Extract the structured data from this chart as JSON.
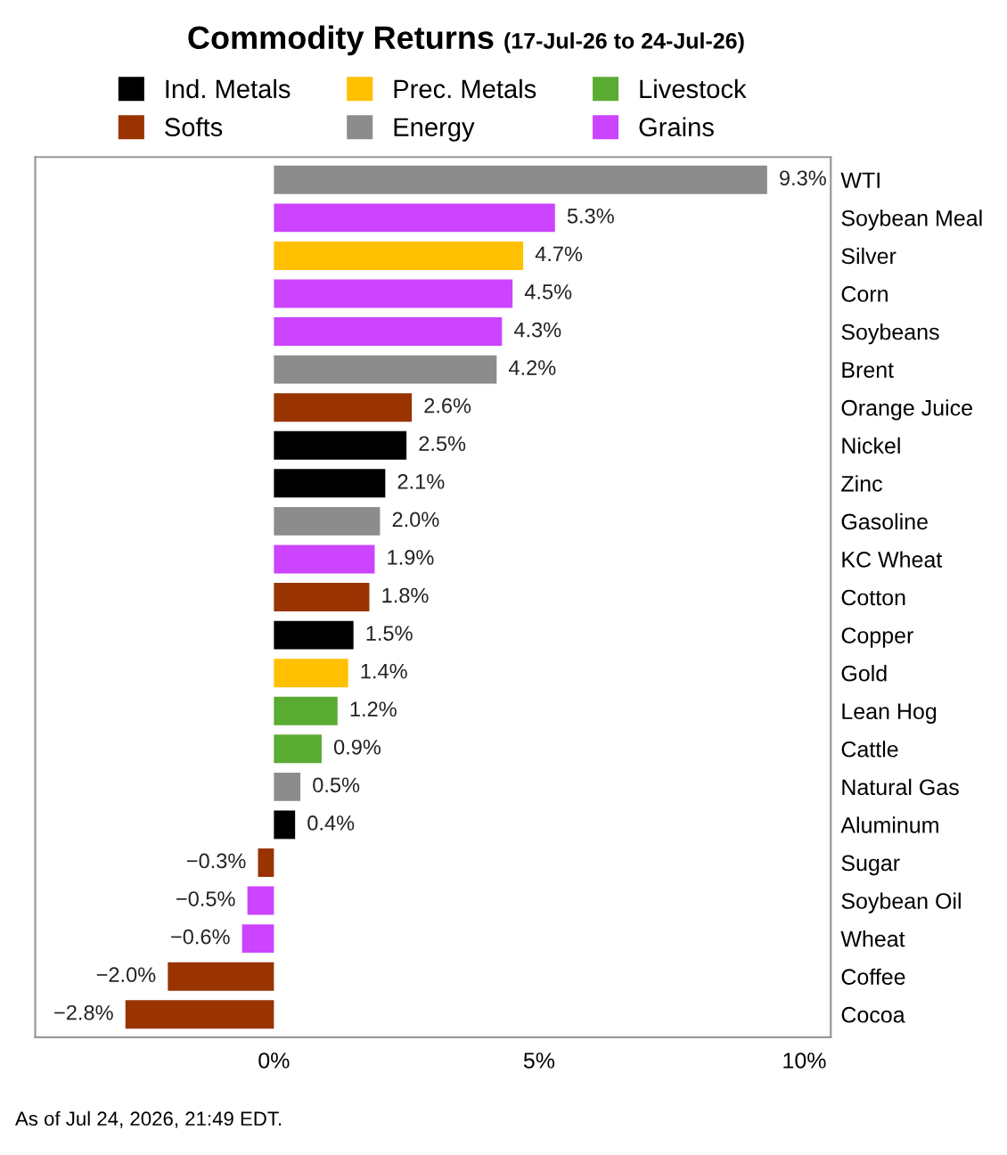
{
  "chart_data": {
    "type": "bar",
    "orientation": "horizontal",
    "title": "Commodity Returns",
    "subtitle": "(17-Jul-26 to 24-Jul-26)",
    "categories": [
      "WTI",
      "Soybean Meal",
      "Silver",
      "Corn",
      "Soybeans",
      "Brent",
      "Orange Juice",
      "Nickel",
      "Zinc",
      "Gasoline",
      "KC Wheat",
      "Cotton",
      "Copper",
      "Gold",
      "Lean Hog",
      "Cattle",
      "Natural Gas",
      "Aluminum",
      "Sugar",
      "Soybean Oil",
      "Wheat",
      "Coffee",
      "Cocoa"
    ],
    "series": [
      {
        "name": "Ind. Metals",
        "color": "#000000",
        "values": [
          null,
          null,
          null,
          null,
          null,
          null,
          null,
          2.5,
          2.1,
          null,
          null,
          null,
          1.5,
          null,
          null,
          null,
          null,
          0.4,
          null,
          null,
          null,
          null,
          null
        ],
        "value_labels": [
          null,
          null,
          null,
          null,
          null,
          null,
          null,
          "2.5%",
          "2.1%",
          null,
          null,
          null,
          "1.5%",
          null,
          null,
          null,
          null,
          "0.4%",
          null,
          null,
          null,
          null,
          null
        ]
      },
      {
        "name": "Prec. Metals",
        "color": "#ffc000",
        "values": [
          null,
          null,
          4.7,
          null,
          null,
          null,
          null,
          null,
          null,
          null,
          null,
          null,
          null,
          1.4,
          null,
          null,
          null,
          null,
          null,
          null,
          null,
          null,
          null
        ],
        "value_labels": [
          null,
          null,
          "4.7%",
          null,
          null,
          null,
          null,
          null,
          null,
          null,
          null,
          null,
          null,
          "1.4%",
          null,
          null,
          null,
          null,
          null,
          null,
          null,
          null,
          null
        ]
      },
      {
        "name": "Livestock",
        "color": "#5aab32",
        "values": [
          null,
          null,
          null,
          null,
          null,
          null,
          null,
          null,
          null,
          null,
          null,
          null,
          null,
          null,
          1.2,
          0.9,
          null,
          null,
          null,
          null,
          null,
          null,
          null
        ],
        "value_labels": [
          null,
          null,
          null,
          null,
          null,
          null,
          null,
          null,
          null,
          null,
          null,
          null,
          null,
          null,
          "1.2%",
          "0.9%",
          null,
          null,
          null,
          null,
          null,
          null,
          null
        ]
      },
      {
        "name": "Softs",
        "color": "#993300",
        "values": [
          null,
          null,
          null,
          null,
          null,
          null,
          2.6,
          null,
          null,
          null,
          null,
          1.8,
          null,
          null,
          null,
          null,
          null,
          null,
          -0.3,
          null,
          null,
          -2.0,
          -2.8
        ],
        "value_labels": [
          null,
          null,
          null,
          null,
          null,
          null,
          "2.6%",
          null,
          null,
          null,
          null,
          "1.8%",
          null,
          null,
          null,
          null,
          null,
          null,
          "−0.3%",
          null,
          null,
          "−2.0%",
          "−2.8%"
        ]
      },
      {
        "name": "Energy",
        "color": "#8c8c8c",
        "values": [
          9.3,
          null,
          null,
          null,
          null,
          4.2,
          null,
          null,
          null,
          2.0,
          null,
          null,
          null,
          null,
          null,
          null,
          0.5,
          null,
          null,
          null,
          null,
          null,
          null
        ],
        "value_labels": [
          "9.3%",
          null,
          null,
          null,
          null,
          "4.2%",
          null,
          null,
          null,
          "2.0%",
          null,
          null,
          null,
          null,
          null,
          null,
          "0.5%",
          null,
          null,
          null,
          null,
          null,
          null
        ]
      },
      {
        "name": "Grains",
        "color": "#cc44ff",
        "values": [
          null,
          5.3,
          null,
          4.5,
          4.3,
          null,
          null,
          null,
          null,
          null,
          1.9,
          null,
          null,
          null,
          null,
          null,
          null,
          null,
          null,
          -0.5,
          -0.6,
          null,
          null
        ],
        "value_labels": [
          null,
          "5.3%",
          null,
          "4.5%",
          "4.3%",
          null,
          null,
          null,
          null,
          null,
          "1.9%",
          null,
          null,
          null,
          null,
          null,
          null,
          null,
          null,
          "−0.5%",
          "−0.6%",
          null,
          null
        ]
      }
    ],
    "xlim": [
      -4.5,
      10.5
    ],
    "xticks": [
      {
        "value": 0,
        "label": "0%"
      },
      {
        "value": 5,
        "label": "5%"
      },
      {
        "value": 10,
        "label": "10%"
      }
    ],
    "grid": false,
    "legend": "top",
    "annotations": [
      "As of Jul 24, 2026, 21:49 EDT."
    ]
  }
}
